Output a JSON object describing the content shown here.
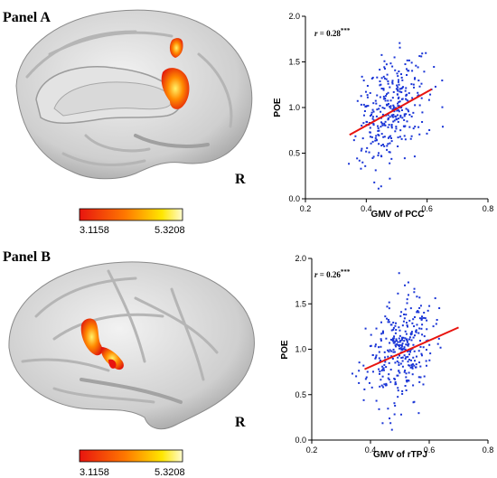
{
  "panels": [
    {
      "label": "Panel A",
      "side": "R",
      "colorbar": {
        "min_label": "3.1158",
        "max_label": "5.3208",
        "colors": [
          "#e8140f",
          "#ff7a00",
          "#ffe600",
          "#fffbd0"
        ]
      }
    },
    {
      "label": "Panel B",
      "side": "R",
      "colorbar": {
        "min_label": "3.1158",
        "max_label": "5.3208",
        "colors": [
          "#e8140f",
          "#ff7a00",
          "#ffe600",
          "#fffbd0"
        ]
      }
    }
  ],
  "chart_data": [
    {
      "type": "scatter",
      "xlabel": "GMV of PCC",
      "ylabel": "POE",
      "xlim": [
        0.2,
        0.8
      ],
      "ylim": [
        0.0,
        2.0
      ],
      "xticks": [
        "0.2",
        "0.4",
        "0.6",
        "0.8"
      ],
      "yticks": [
        "0.0",
        "0.5",
        "1.0",
        "1.5",
        "2.0"
      ],
      "annotation": {
        "r": "r",
        "value": " = 0.28",
        "sig": "***"
      },
      "regression": {
        "x": [
          0.345,
          0.615
        ],
        "y": [
          0.7,
          1.2
        ]
      },
      "point_color": "#1a35d6",
      "line_color": "#e8140f",
      "n_points": 330,
      "x_mean": 0.48,
      "x_sd": 0.055,
      "y_mean": 0.96,
      "y_sd": 0.29,
      "r_value": 0.28
    },
    {
      "type": "scatter",
      "xlabel": "GMV of rTPJ",
      "ylabel": "POE",
      "xlim": [
        0.2,
        0.8
      ],
      "ylim": [
        0.0,
        2.0
      ],
      "xticks": [
        "0.2",
        "0.4",
        "0.6",
        "0.8"
      ],
      "yticks": [
        "0.0",
        "0.5",
        "1.0",
        "1.5",
        "2.0"
      ],
      "annotation": {
        "r": "r",
        "value": " = 0.26",
        "sig": "***"
      },
      "regression": {
        "x": [
          0.38,
          0.7
        ],
        "y": [
          0.78,
          1.24
        ]
      },
      "point_color": "#1a35d6",
      "line_color": "#e8140f",
      "n_points": 330,
      "x_mean": 0.5,
      "x_sd": 0.055,
      "y_mean": 0.98,
      "y_sd": 0.29,
      "r_value": 0.26
    }
  ]
}
